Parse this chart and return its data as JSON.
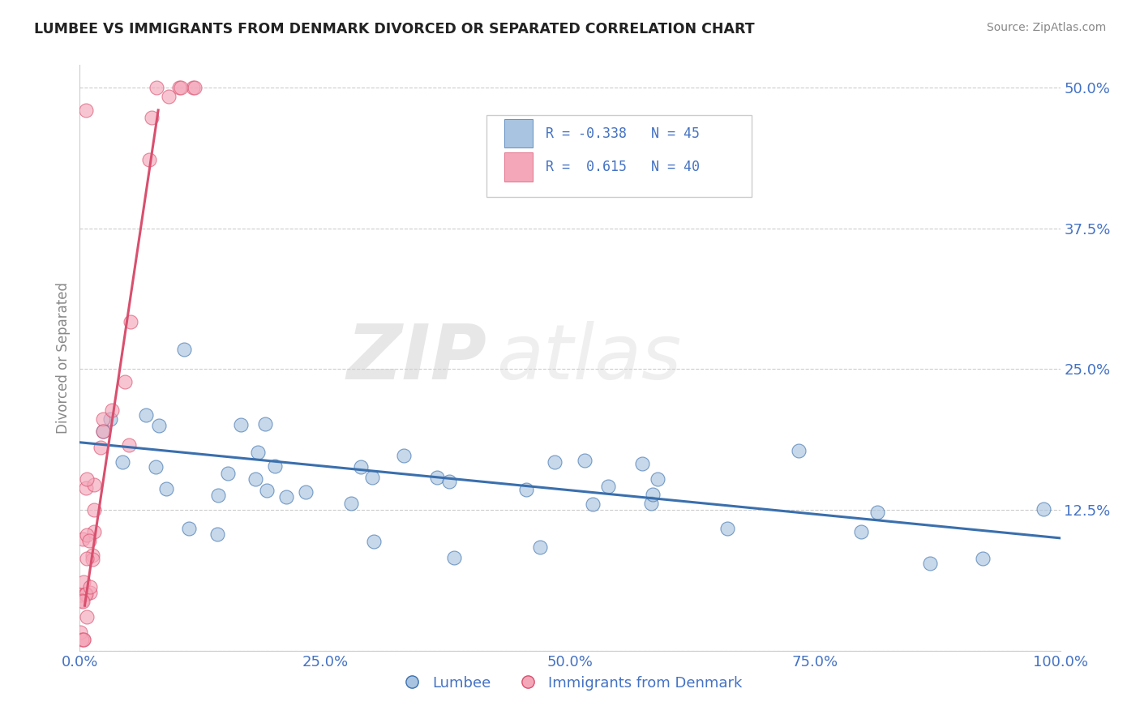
{
  "title": "LUMBEE VS IMMIGRANTS FROM DENMARK DIVORCED OR SEPARATED CORRELATION CHART",
  "source_text": "Source: ZipAtlas.com",
  "ylabel": "Divorced or Separated",
  "watermark_zip": "ZIP",
  "watermark_atlas": "atlas",
  "xlim": [
    0.0,
    100.0
  ],
  "ylim": [
    0.0,
    52.0
  ],
  "yticks": [
    0.0,
    12.5,
    25.0,
    37.5,
    50.0
  ],
  "xticks": [
    0.0,
    25.0,
    50.0,
    75.0,
    100.0
  ],
  "xtick_labels": [
    "0.0%",
    "25.0%",
    "50.0%",
    "75.0%",
    "100.0%"
  ],
  "ytick_labels": [
    "",
    "12.5%",
    "25.0%",
    "37.5%",
    "50.0%"
  ],
  "legend_label1": "Lumbee",
  "legend_label2": "Immigrants from Denmark",
  "R1": -0.338,
  "N1": 45,
  "R2": 0.615,
  "N2": 40,
  "color_lumbee": "#a8c4e0",
  "color_denmark": "#f4a7b9",
  "color_line_lumbee": "#3a6fad",
  "color_line_denmark": "#d94f6e",
  "lumbee_trend_x0": 0.0,
  "lumbee_trend_y0": 18.5,
  "lumbee_trend_x1": 100.0,
  "lumbee_trend_y1": 10.0,
  "denmark_trend_x0": 0.5,
  "denmark_trend_y0": 4.0,
  "denmark_trend_x1": 8.0,
  "denmark_trend_y1": 48.0
}
